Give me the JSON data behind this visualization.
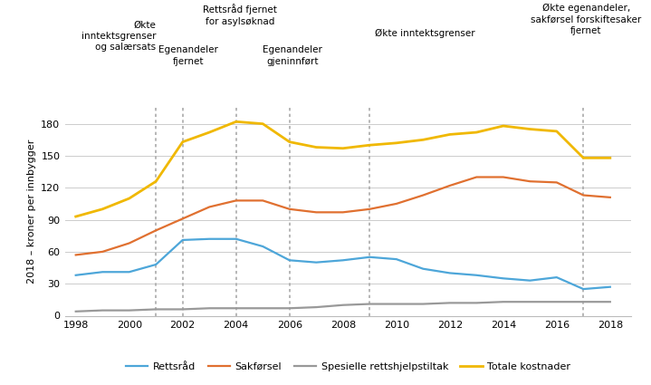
{
  "years": [
    1998,
    1999,
    2000,
    2001,
    2002,
    2003,
    2004,
    2005,
    2006,
    2007,
    2008,
    2009,
    2010,
    2011,
    2012,
    2013,
    2014,
    2015,
    2016,
    2017,
    2018
  ],
  "rettsrad": [
    38,
    41,
    41,
    48,
    71,
    72,
    72,
    65,
    52,
    50,
    52,
    55,
    53,
    44,
    40,
    38,
    35,
    33,
    36,
    25,
    27
  ],
  "sakforsel": [
    57,
    60,
    68,
    80,
    91,
    102,
    108,
    108,
    100,
    97,
    97,
    100,
    105,
    113,
    122,
    130,
    130,
    126,
    125,
    113,
    111
  ],
  "spesielle": [
    4,
    5,
    5,
    6,
    6,
    7,
    7,
    7,
    7,
    8,
    10,
    11,
    11,
    11,
    12,
    12,
    13,
    13,
    13,
    13,
    13
  ],
  "totale": [
    93,
    100,
    110,
    126,
    163,
    172,
    182,
    180,
    163,
    158,
    157,
    160,
    162,
    165,
    170,
    172,
    178,
    175,
    173,
    148,
    148
  ],
  "colors": {
    "rettsrad": "#4da6d9",
    "sakforsel": "#e07030",
    "spesielle": "#999999",
    "totale": "#f0b800"
  },
  "ylabel": "2018 – kroner per innbygger",
  "ylim": [
    0,
    195
  ],
  "yticks": [
    0,
    30,
    60,
    90,
    120,
    150,
    180
  ],
  "xlim": [
    1997.6,
    2018.8
  ],
  "xticks": [
    1998,
    2000,
    2002,
    2004,
    2006,
    2008,
    2010,
    2012,
    2014,
    2016,
    2018
  ],
  "vlines": [
    2001,
    2002,
    2004,
    2006,
    2009,
    2017
  ],
  "legend_labels": [
    "Rettsråd",
    "Sakførsel",
    "Spesielle rettshjelpstiltak",
    "Totale kostnader"
  ],
  "background_color": "#ffffff",
  "figsize": [
    7.19,
    4.25
  ],
  "dpi": 100
}
